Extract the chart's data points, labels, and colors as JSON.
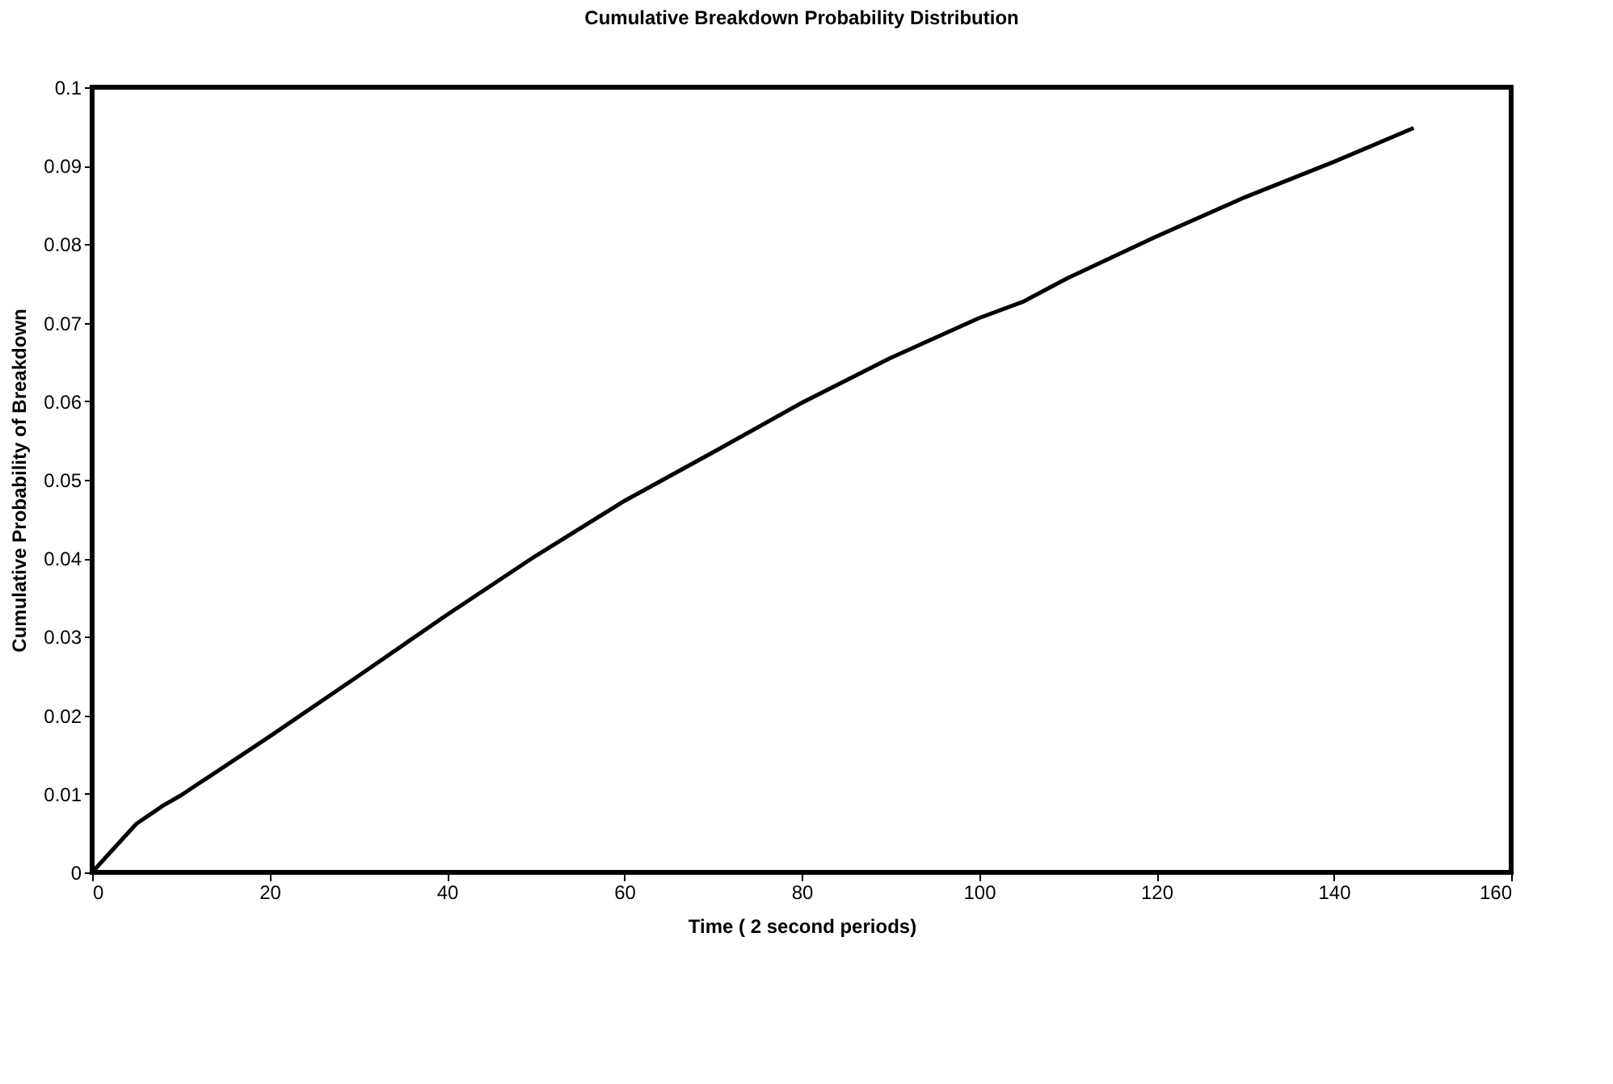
{
  "chart_data": {
    "type": "line",
    "title": "Cumulative Breakdown Probability Distribution",
    "xlabel": "Time ( 2 second periods)",
    "ylabel": "Cumulative Probability of Breakdown",
    "x": [
      0,
      2,
      5,
      8,
      10,
      20,
      30,
      40,
      50,
      60,
      70,
      80,
      90,
      100,
      105,
      110,
      120,
      130,
      140,
      149
    ],
    "series": [
      {
        "color": "#000000",
        "values": [
          0,
          0.0025,
          0.0062,
          0.0085,
          0.0098,
          0.0173,
          0.025,
          0.0328,
          0.0403,
          0.0473,
          0.0535,
          0.0598,
          0.0655,
          0.0706,
          0.0727,
          0.0757,
          0.081,
          0.086,
          0.0905,
          0.0948
        ]
      }
    ],
    "xlim": [
      0,
      160
    ],
    "xticks": [
      0,
      20,
      40,
      60,
      80,
      100,
      120,
      140,
      160
    ],
    "ylim": [
      0,
      0.1
    ],
    "yticks": [
      0,
      0.01,
      0.02,
      0.03,
      0.04,
      0.05,
      0.06,
      0.07,
      0.08,
      0.09,
      0.1
    ],
    "grid": false,
    "legend": false,
    "marker": "none",
    "line_style": "solid"
  }
}
